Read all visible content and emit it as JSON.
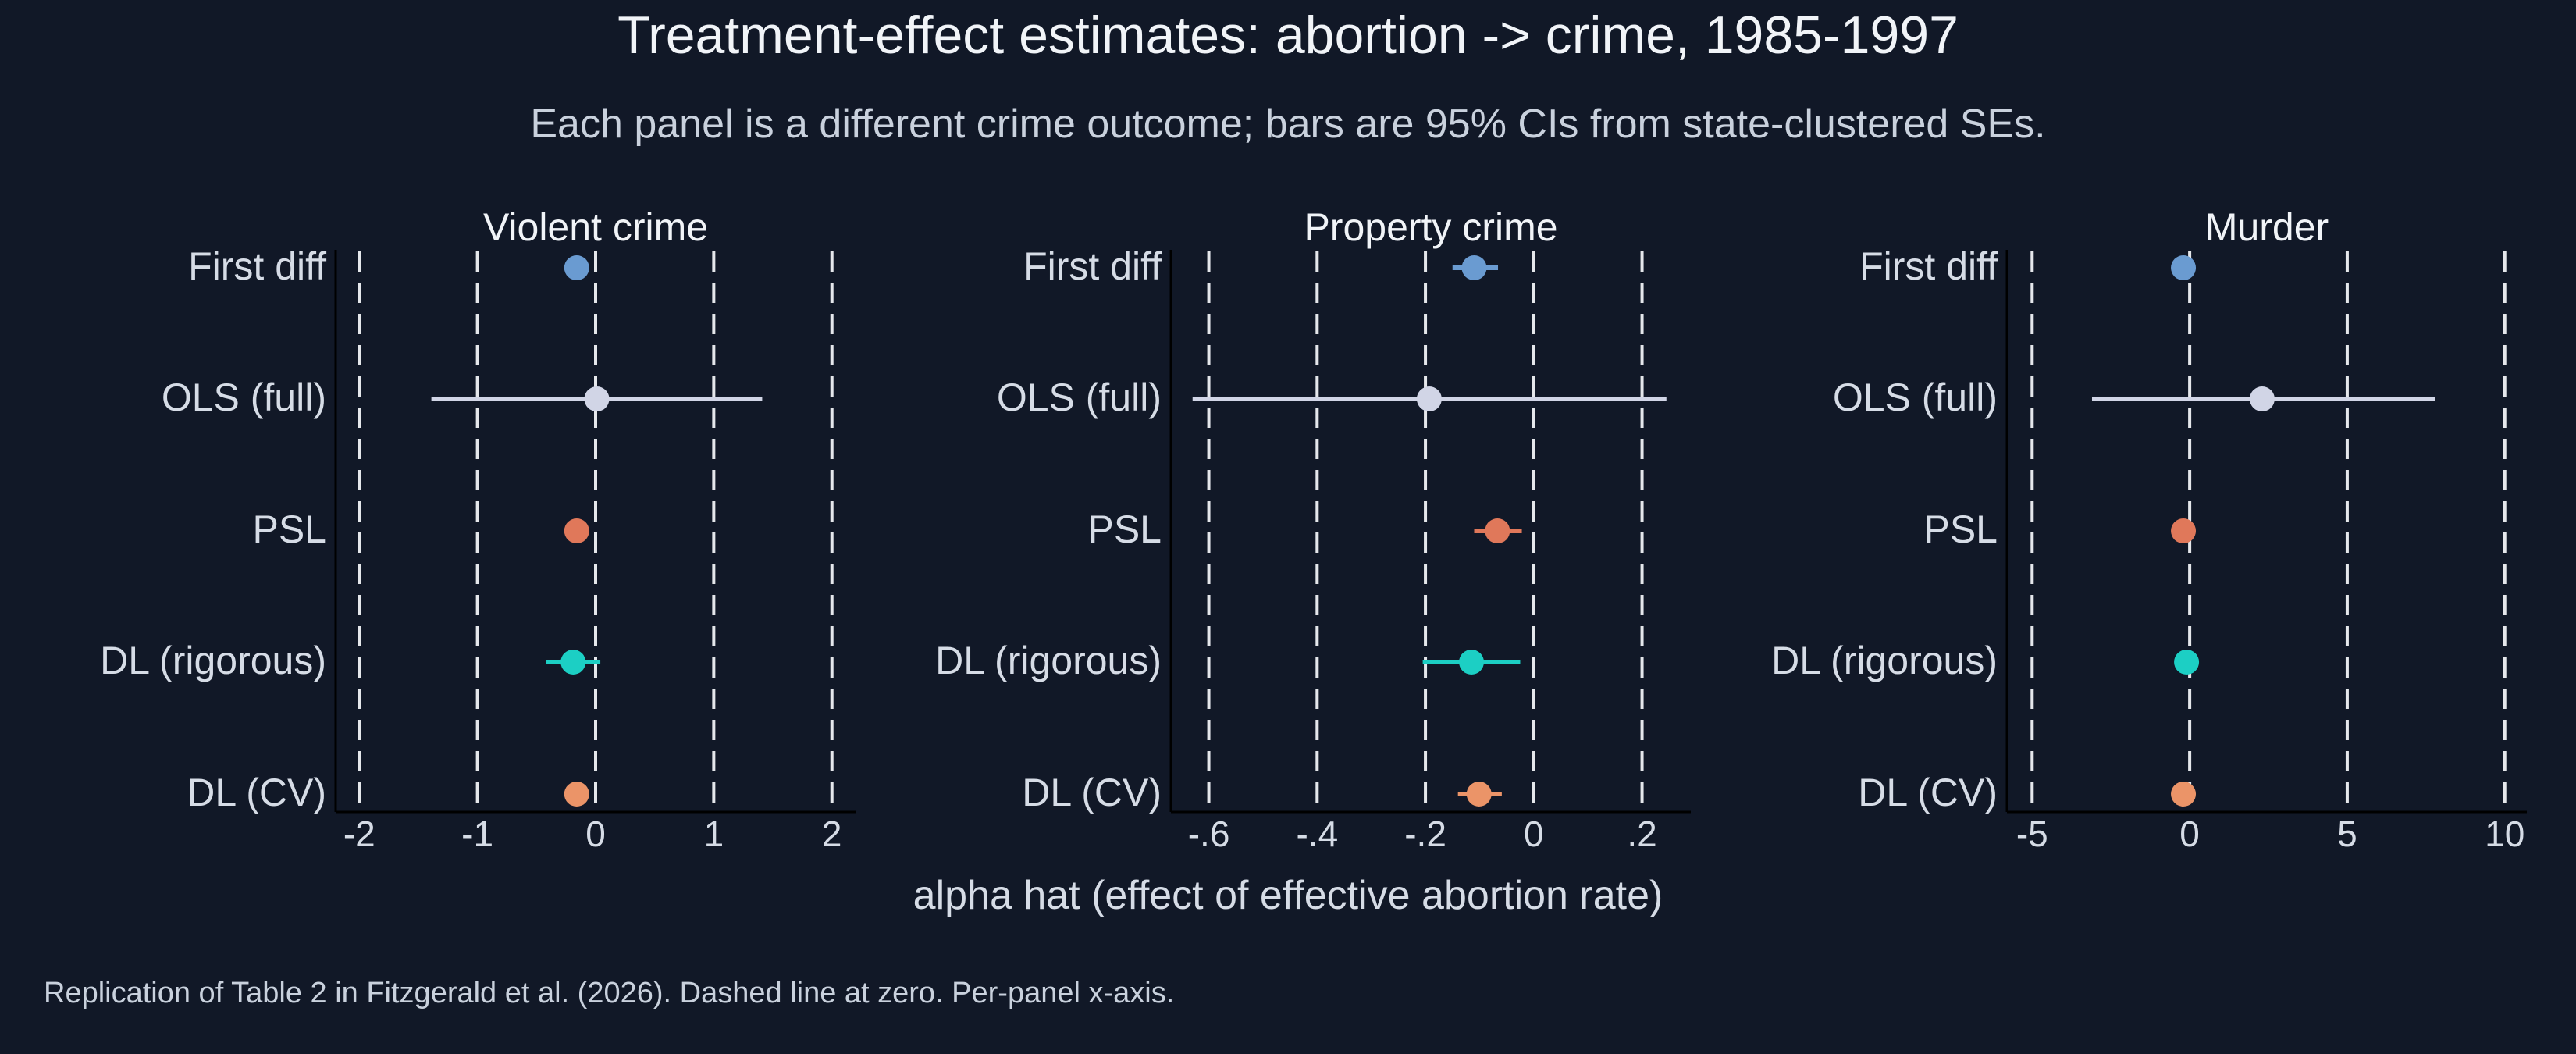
{
  "title": "Treatment-effect estimates: abortion -> crime, 1985-1997",
  "subtitle": "Each panel is a different crime outcome; bars are 95% CIs from state-clustered SEs.",
  "xlabel": "alpha hat (effect of effective abortion rate)",
  "caption": "Replication of Table 2 in Fitzgerald et al. (2026). Dashed line at zero. Per-panel x-axis.",
  "colors": {
    "background": "#111827",
    "grid": "#e5e7eb",
    "axis": "#000000",
    "First diff": "#6a9bd1",
    "OLS (full)": "#d1d5e6",
    "PSL": "#e0785a",
    "DL (rigorous)": "#1ccfc4",
    "DL (CV)": "#eb9468"
  },
  "chart_data": [
    {
      "type": "dot-whisker",
      "title": "Violent crime",
      "categories": [
        "First diff",
        "OLS (full)",
        "PSL",
        "DL (rigorous)",
        "DL (CV)"
      ],
      "estimates": [
        -0.16,
        0.01,
        -0.16,
        -0.19,
        -0.16
      ],
      "ci_low": [
        -0.16,
        -1.39,
        -0.16,
        -0.42,
        -0.16
      ],
      "ci_high": [
        -0.16,
        1.41,
        -0.16,
        0.04,
        -0.16
      ],
      "xlim": [
        -2.2,
        2.2
      ],
      "xticks": [
        -2,
        -1,
        0,
        1,
        2
      ],
      "xtick_labels": [
        "-2",
        "-1",
        "0",
        "1",
        "2"
      ],
      "grid": "vertical dashed"
    },
    {
      "type": "dot-whisker",
      "title": "Property crime",
      "categories": [
        "First diff",
        "OLS (full)",
        "PSL",
        "DL (rigorous)",
        "DL (CV)"
      ],
      "estimates": [
        -0.11,
        -0.193,
        -0.067,
        -0.115,
        -0.101
      ],
      "ci_low": [
        -0.15,
        -0.63,
        -0.11,
        -0.205,
        -0.14
      ],
      "ci_high": [
        -0.066,
        0.245,
        -0.022,
        -0.025,
        -0.059
      ],
      "xlim": [
        -0.67,
        0.29
      ],
      "xticks": [
        -0.6,
        -0.4,
        -0.2,
        0,
        0.2
      ],
      "xtick_labels": [
        "-.6",
        "-.4",
        "-.2",
        "0",
        ".2"
      ],
      "grid": "vertical dashed"
    },
    {
      "type": "dot-whisker",
      "title": "Murder",
      "categories": [
        "First diff",
        "OLS (full)",
        "PSL",
        "DL (rigorous)",
        "DL (CV)"
      ],
      "estimates": [
        -0.2,
        2.3,
        -0.2,
        -0.1,
        -0.2
      ],
      "ci_low": [
        -0.2,
        -3.1,
        -0.2,
        -0.1,
        -0.2
      ],
      "ci_high": [
        -0.2,
        7.8,
        -0.2,
        -0.1,
        -0.2
      ],
      "xlim": [
        -5.8,
        10.7
      ],
      "xticks": [
        -5,
        0,
        5,
        10
      ],
      "xtick_labels": [
        "-5",
        "0",
        "5",
        "10"
      ],
      "grid": "vertical dashed"
    }
  ]
}
